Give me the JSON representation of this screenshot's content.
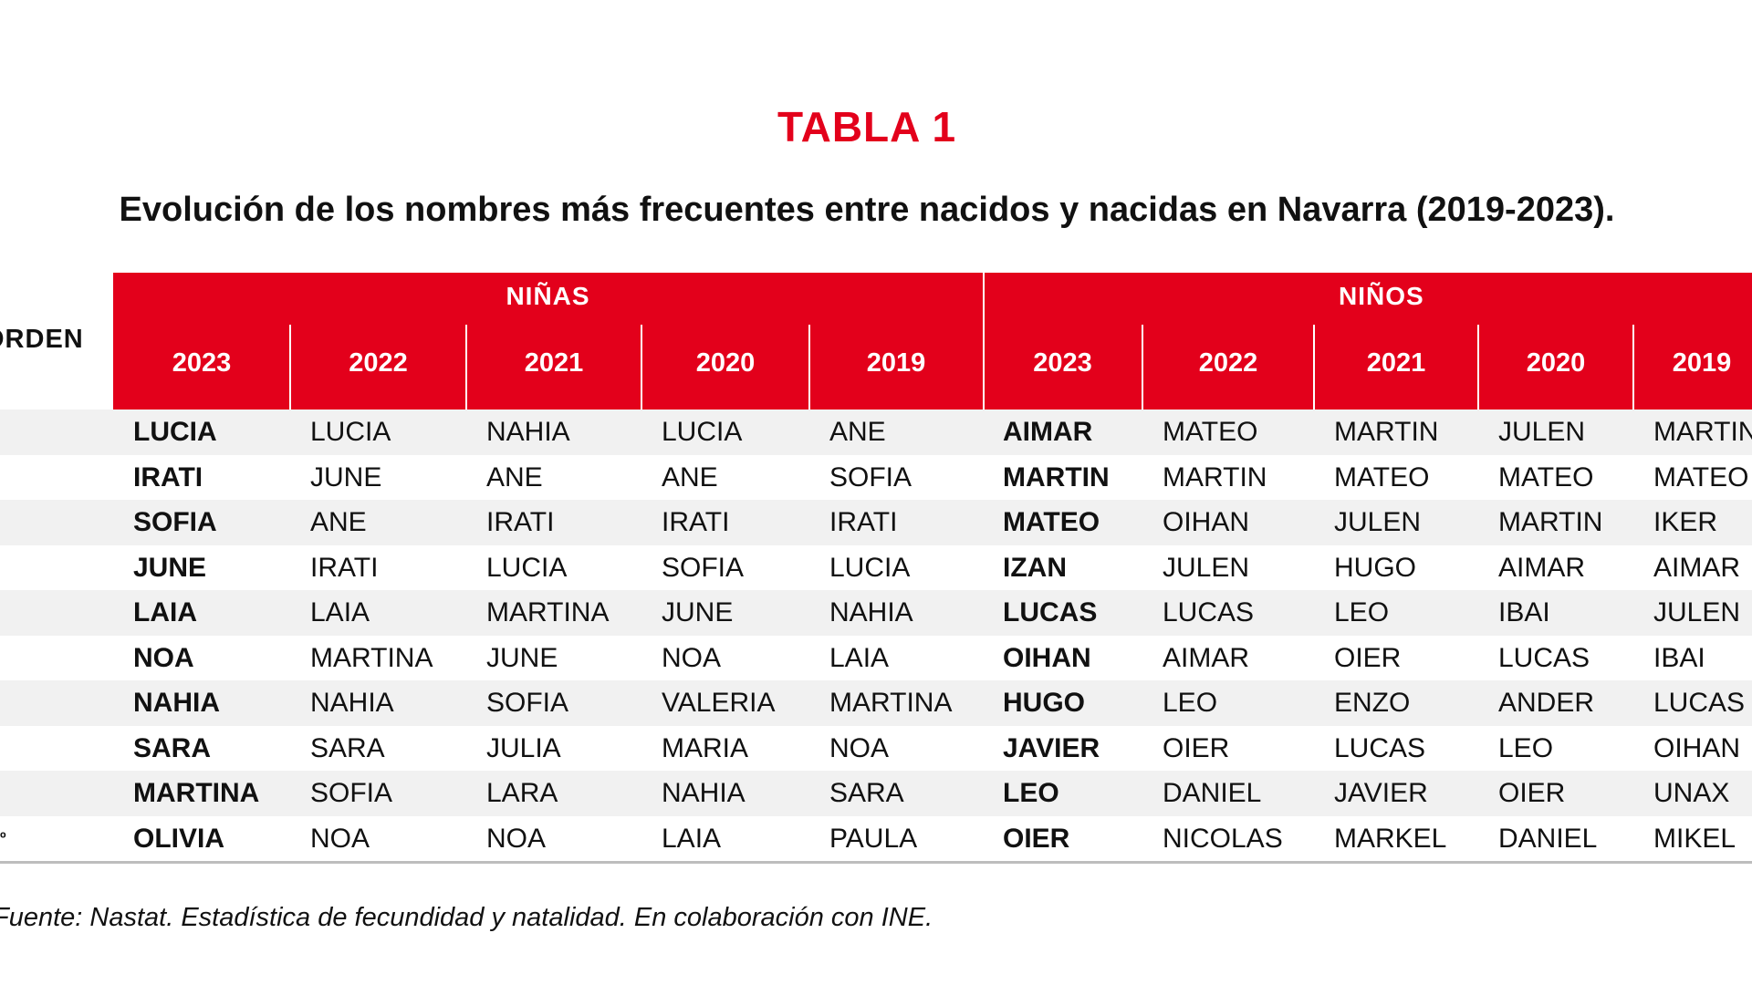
{
  "table_label": "TABLA 1",
  "subtitle": "Evolución de los nombres más frecuentes entre nacidos y nacidas en Navarra (2019-2023).",
  "orden_header": "ORDEN",
  "groups": {
    "girls": "NIÑAS",
    "boys": "NIÑOS"
  },
  "years": [
    "2023",
    "2022",
    "2021",
    "2020",
    "2019",
    "2023",
    "2022",
    "2021",
    "2020",
    "2019"
  ],
  "rows": [
    [
      "LUCIA",
      "LUCIA",
      "NAHIA",
      "LUCIA",
      "ANE",
      "AIMAR",
      "MATEO",
      "MARTIN",
      "JULEN",
      "MARTIN"
    ],
    [
      "IRATI",
      "JUNE",
      "ANE",
      "ANE",
      "SOFIA",
      "MARTIN",
      "MARTIN",
      "MATEO",
      "MATEO",
      "MATEO"
    ],
    [
      "SOFIA",
      "ANE",
      "IRATI",
      "IRATI",
      "IRATI",
      "MATEO",
      "OIHAN",
      "JULEN",
      "MARTIN",
      "IKER"
    ],
    [
      "JUNE",
      "IRATI",
      "LUCIA",
      "SOFIA",
      "LUCIA",
      "IZAN",
      "JULEN",
      "HUGO",
      "AIMAR",
      "AIMAR"
    ],
    [
      "LAIA",
      "LAIA",
      "MARTINA",
      "JUNE",
      "NAHIA",
      "LUCAS",
      "LUCAS",
      "LEO",
      "IBAI",
      "JULEN"
    ],
    [
      "NOA",
      "MARTINA",
      "JUNE",
      "NOA",
      "LAIA",
      "OIHAN",
      "AIMAR",
      "OIER",
      "LUCAS",
      "IBAI"
    ],
    [
      "NAHIA",
      "NAHIA",
      "SOFIA",
      "VALERIA",
      "MARTINA",
      "HUGO",
      "LEO",
      "ENZO",
      "ANDER",
      "LUCAS"
    ],
    [
      "SARA",
      "SARA",
      "JULIA",
      "MARIA",
      "NOA",
      "JAVIER",
      "OIER",
      "LUCAS",
      "LEO",
      "OIHAN"
    ],
    [
      "MARTINA",
      "SOFIA",
      "LARA",
      "NAHIA",
      "SARA",
      "LEO",
      "DANIEL",
      "JAVIER",
      "OIER",
      "UNAX"
    ],
    [
      "OLIVIA",
      "NOA",
      "NOA",
      "LAIA",
      "PAULA",
      "OIER",
      "NICOLAS",
      "MARKEL",
      "DANIEL",
      "MIKEL"
    ]
  ],
  "last_row_mark": "º",
  "source": "Fuente: Nastat. Estadística de fecundidad y natalidad. En colaboración con INE.",
  "colors": {
    "header_red": "#e3001b",
    "title_red": "#e3001b",
    "zebra": "#f1f1f1"
  }
}
